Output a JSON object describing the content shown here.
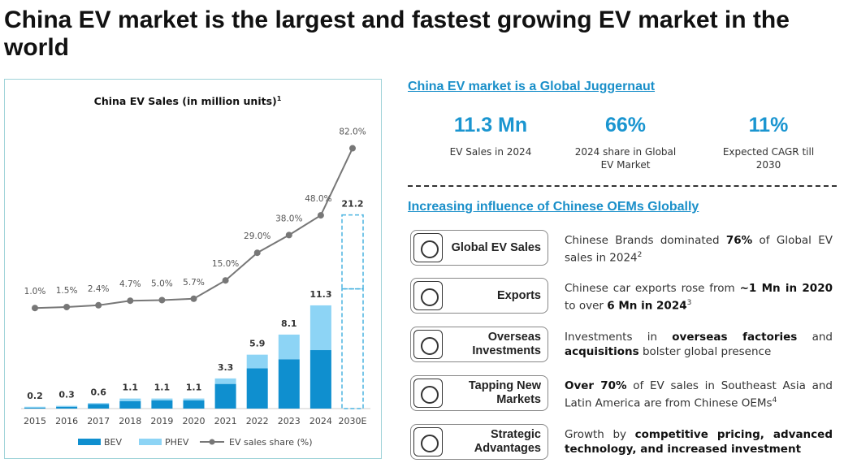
{
  "header": {
    "title": "China EV market is the largest and fastest growing EV market in the world"
  },
  "chart_data": {
    "type": "bar",
    "title": "China EV Sales (in million units)",
    "title_note": "1",
    "categories": [
      "2015",
      "2016",
      "2017",
      "2018",
      "2019",
      "2020",
      "2021",
      "2022",
      "2023",
      "2024",
      "2030E"
    ],
    "estimate": [
      false,
      false,
      false,
      false,
      false,
      false,
      false,
      false,
      false,
      false,
      true
    ],
    "series": [
      {
        "name": "BEV",
        "color": "#0f8fcf",
        "values": [
          0.1,
          0.2,
          0.5,
          0.8,
          0.9,
          0.9,
          2.7,
          4.4,
          5.4,
          6.4,
          13.1
        ]
      },
      {
        "name": "PHEV",
        "color": "#8dd4f5",
        "values": [
          0.1,
          0.1,
          0.1,
          0.3,
          0.2,
          0.2,
          0.6,
          1.5,
          2.7,
          4.9,
          8.1
        ]
      },
      {
        "name": "EV sales share (%)",
        "type": "line",
        "axis": "y2",
        "color": "#777777",
        "values": [
          1.0,
          1.5,
          2.4,
          4.7,
          5.0,
          5.7,
          15.0,
          29.0,
          38.0,
          48.0,
          82.0
        ],
        "value_labels": [
          "1.0%",
          "1.5%",
          "2.4%",
          "4.7%",
          "5.0%",
          "5.7%",
          "15.0%",
          "29.0%",
          "38.0%",
          "48.0%",
          "82.0%"
        ]
      }
    ],
    "totals": [
      0.2,
      0.3,
      0.6,
      1.1,
      1.1,
      1.1,
      3.3,
      5.9,
      8.1,
      11.3,
      21.2
    ],
    "ylim": [
      0,
      31.3
    ],
    "y2lim": [
      -50,
      95
    ]
  },
  "panel": {
    "title": "China EV market is a Global Juggernaut",
    "stats": [
      {
        "value": "11.3 Mn",
        "label": "EV Sales in 2024"
      },
      {
        "value": "66%",
        "label": "2024 share in Global EV Market"
      },
      {
        "value": "11%",
        "label": "Expected CAGR till 2030"
      }
    ]
  },
  "influence": {
    "title": "Increasing influence of Chinese OEMs Globally",
    "items": [
      {
        "label": "Global EV Sales",
        "text": [
          {
            "t": "Chinese Brands dominated "
          },
          {
            "t": "76%",
            "b": true
          },
          {
            "t": " of Global EV sales in 2024"
          },
          {
            "t": "2",
            "sup": true
          }
        ]
      },
      {
        "label": "Exports",
        "text": [
          {
            "t": "Chinese car exports rose from "
          },
          {
            "t": "~1 Mn in 2020",
            "b": true
          },
          {
            "t": " to over "
          },
          {
            "t": "6 Mn in 2024",
            "b": true
          },
          {
            "t": "3",
            "sup": true
          }
        ]
      },
      {
        "label": "Overseas Investments",
        "text": [
          {
            "t": "Investments in "
          },
          {
            "t": "overseas factories",
            "b": true
          },
          {
            "t": " and "
          },
          {
            "t": "acquisitions",
            "b": true
          },
          {
            "t": " bolster global presence"
          }
        ]
      },
      {
        "label": "Tapping New Markets",
        "text": [
          {
            "t": "Over 70%",
            "b": true
          },
          {
            "t": " of EV sales in Southeast Asia and Latin America are from Chinese OEMs"
          },
          {
            "t": "4",
            "sup": true
          }
        ]
      },
      {
        "label": "Strategic Advantages",
        "text": [
          {
            "t": "Growth by "
          },
          {
            "t": "competitive pricing, advanced technology, and increased investment",
            "b": true
          }
        ]
      }
    ]
  }
}
